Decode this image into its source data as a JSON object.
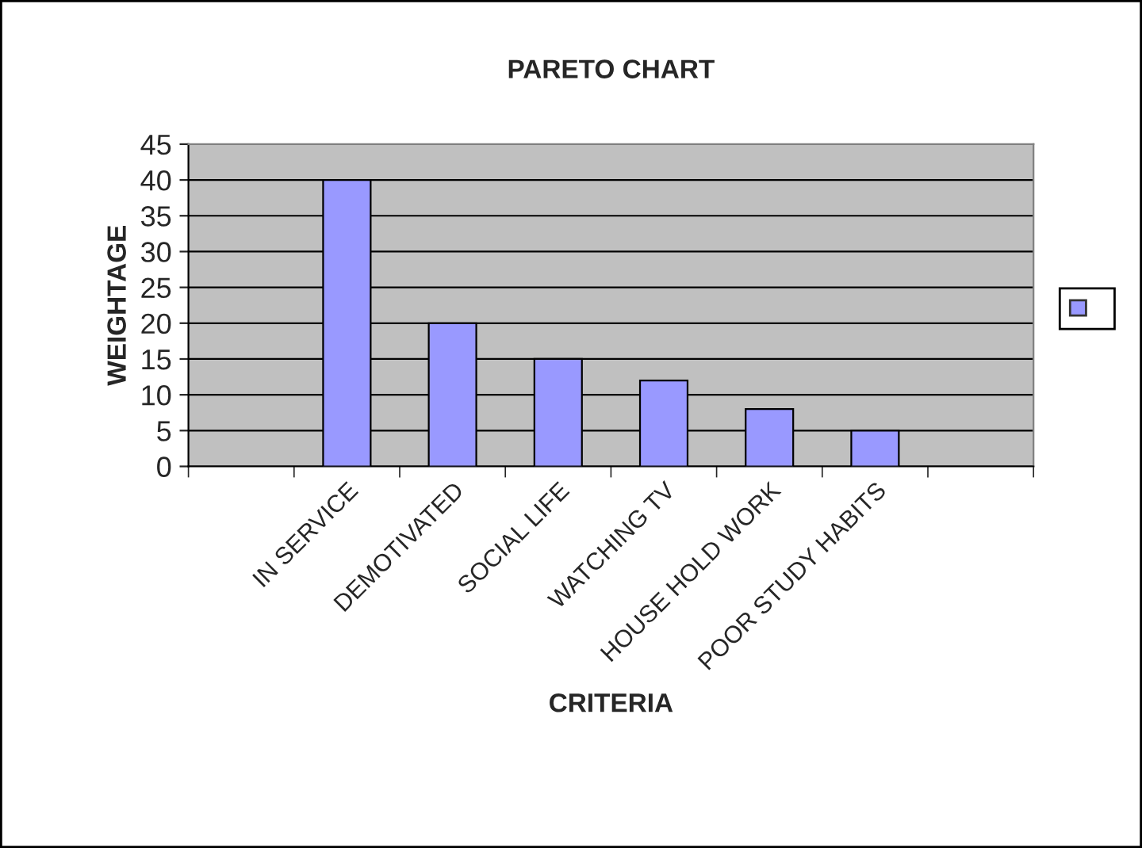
{
  "chart_data": {
    "type": "bar",
    "title": "PARETO CHART",
    "xlabel": "CRITERIA",
    "ylabel": "WEIGHTAGE",
    "categories": [
      null,
      "IN SERVICE",
      "DEMOTIVATED",
      "SOCIAL LIFE",
      "WATCHING TV",
      "HOUSE HOLD WORK",
      "POOR STUDY HABITS",
      null
    ],
    "series": [
      {
        "color": "#9999ff",
        "values": [
          null,
          40,
          20,
          15,
          12,
          8,
          5,
          null
        ]
      }
    ],
    "ylim": [
      0,
      45
    ],
    "yticks": [
      0,
      5,
      10,
      15,
      20,
      25,
      30,
      35,
      40,
      45
    ],
    "grid": "y"
  }
}
